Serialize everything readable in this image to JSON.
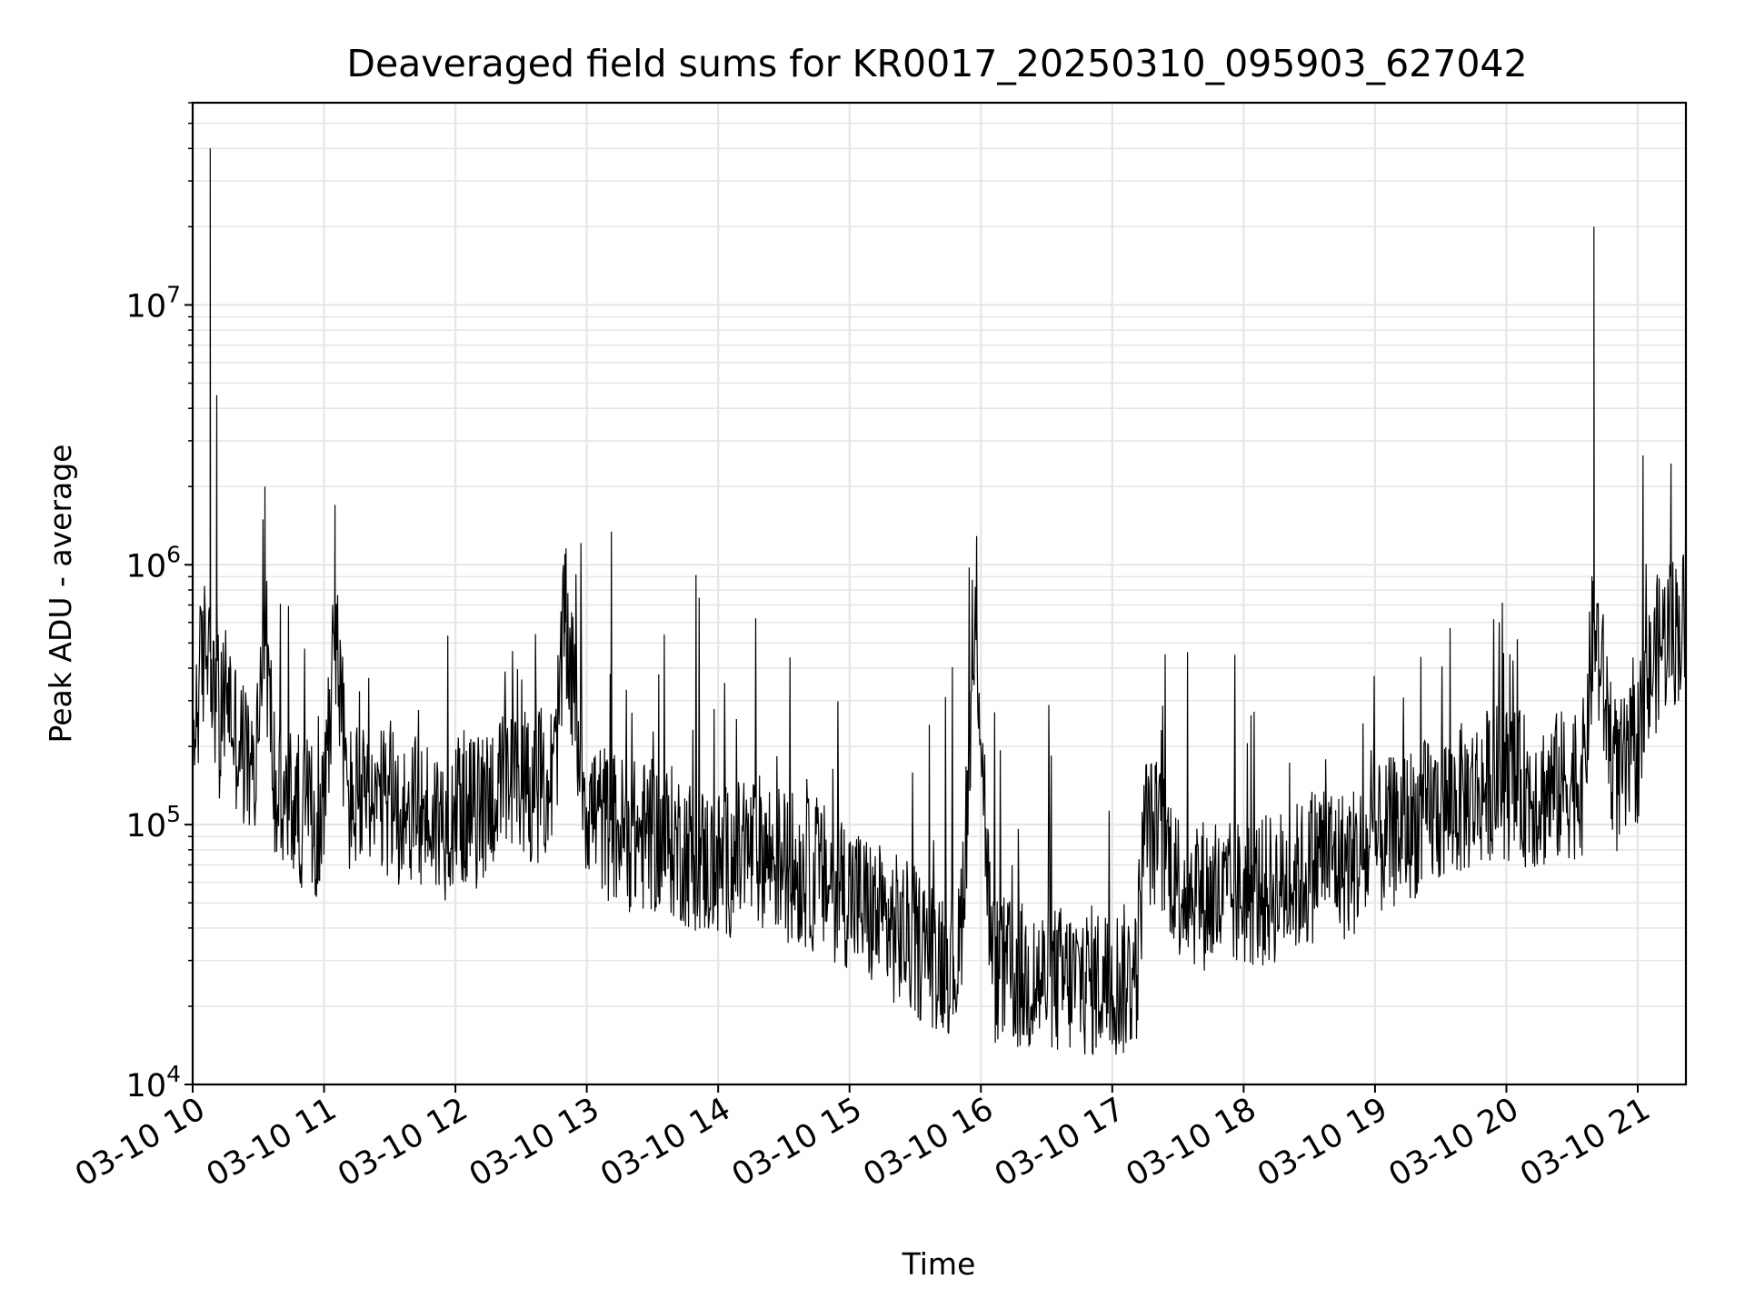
{
  "chart_data": {
    "type": "line",
    "title": "Deaveraged field sums for KR0017_20250310_095903_627042",
    "xlabel": "Time",
    "ylabel": "Peak ADU - average",
    "yscale": "log",
    "ylim": [
      10000,
      60000000
    ],
    "xlim": [
      "2025-03-10 10:00",
      "2025-03-10 21:22"
    ],
    "grid": true,
    "line_color": "#000000",
    "grid_color": "#e6e6e6",
    "x_tick_labels": [
      "03-10 10",
      "03-10 11",
      "03-10 12",
      "03-10 13",
      "03-10 14",
      "03-10 15",
      "03-10 16",
      "03-10 17",
      "03-10 18",
      "03-10 19",
      "03-10 20",
      "03-10 21"
    ],
    "y_ticks": [
      {
        "base": "10",
        "exp": "4",
        "value": 10000
      },
      {
        "base": "10",
        "exp": "5",
        "value": 100000
      },
      {
        "base": "10",
        "exp": "6",
        "value": 1000000
      },
      {
        "base": "10",
        "exp": "7",
        "value": 10000000
      }
    ],
    "series": [
      {
        "x": [
          "2025-03-10 10:00",
          "2025-03-10 10:03",
          "2025-03-10 10:06",
          "2025-03-10 10:08",
          "2025-03-10 10:10",
          "2025-03-10 10:11",
          "2025-03-10 10:12",
          "2025-03-10 10:14",
          "2025-03-10 10:16",
          "2025-03-10 10:18",
          "2025-03-10 10:20",
          "2025-03-10 10:24",
          "2025-03-10 10:28",
          "2025-03-10 10:33",
          "2025-03-10 10:38",
          "2025-03-10 10:45",
          "2025-03-10 10:52",
          "2025-03-10 10:59",
          "2025-03-10 11:05",
          "2025-03-10 11:11",
          "2025-03-10 11:16",
          "2025-03-10 11:20",
          "2025-03-10 11:30",
          "2025-03-10 11:40",
          "2025-03-10 11:47",
          "2025-03-10 11:55",
          "2025-03-10 12:00",
          "2025-03-10 12:10",
          "2025-03-10 12:15",
          "2025-03-10 12:25",
          "2025-03-10 12:36",
          "2025-03-10 12:45",
          "2025-03-10 12:50",
          "2025-03-10 13:00",
          "2025-03-10 13:10",
          "2025-03-10 13:21",
          "2025-03-10 13:30",
          "2025-03-10 13:40",
          "2025-03-10 13:50",
          "2025-03-10 13:57",
          "2025-03-10 14:00",
          "2025-03-10 14:10",
          "2025-03-10 14:20",
          "2025-03-10 14:31",
          "2025-03-10 14:40",
          "2025-03-10 14:50",
          "2025-03-10 15:00",
          "2025-03-10 15:10",
          "2025-03-10 15:20",
          "2025-03-10 15:30",
          "2025-03-10 15:40",
          "2025-03-10 15:50",
          "2025-03-10 15:58",
          "2025-03-10 16:05",
          "2025-03-10 16:15",
          "2025-03-10 16:25",
          "2025-03-10 16:35",
          "2025-03-10 16:45",
          "2025-03-10 16:55",
          "2025-03-10 17:05",
          "2025-03-10 17:11",
          "2025-03-10 17:15",
          "2025-03-10 17:25",
          "2025-03-10 17:30",
          "2025-03-10 17:40",
          "2025-03-10 17:50",
          "2025-03-10 18:00",
          "2025-03-10 18:10",
          "2025-03-10 18:20",
          "2025-03-10 18:30",
          "2025-03-10 18:35",
          "2025-03-10 18:45",
          "2025-03-10 18:55",
          "2025-03-10 19:05",
          "2025-03-10 19:15",
          "2025-03-10 19:25",
          "2025-03-10 19:35",
          "2025-03-10 19:45",
          "2025-03-10 19:55",
          "2025-03-10 20:05",
          "2025-03-10 20:15",
          "2025-03-10 20:25",
          "2025-03-10 20:35",
          "2025-03-10 20:40",
          "2025-03-10 20:50",
          "2025-03-10 20:55",
          "2025-03-10 21:00",
          "2025-03-10 21:05",
          "2025-03-10 21:10",
          "2025-03-10 21:15",
          "2025-03-10 21:22"
        ],
        "y": [
          200000,
          350000,
          500000,
          40000000,
          250000,
          4500000,
          180000,
          300000,
          350000,
          250000,
          220000,
          180000,
          140000,
          2000000,
          120000,
          120000,
          110000,
          100000,
          1700000,
          120000,
          130000,
          110000,
          120000,
          110000,
          110000,
          100000,
          120000,
          110000,
          130000,
          140000,
          140000,
          150000,
          1100000,
          120000,
          100000,
          90000,
          90000,
          85000,
          75000,
          70000,
          70000,
          75000,
          80000,
          70000,
          65000,
          60000,
          55000,
          45000,
          40000,
          35000,
          32000,
          30000,
          1200000,
          28000,
          26000,
          25000,
          25000,
          25000,
          25000,
          25000,
          27000,
          100000,
          80000,
          60000,
          55000,
          50000,
          55000,
          55000,
          60000,
          65000,
          80000,
          70000,
          75000,
          90000,
          100000,
          110000,
          120000,
          130000,
          150000,
          140000,
          130000,
          140000,
          150000,
          20000000,
          150000,
          160000,
          200000,
          350000,
          500000,
          550000,
          650000
        ]
      }
    ]
  }
}
